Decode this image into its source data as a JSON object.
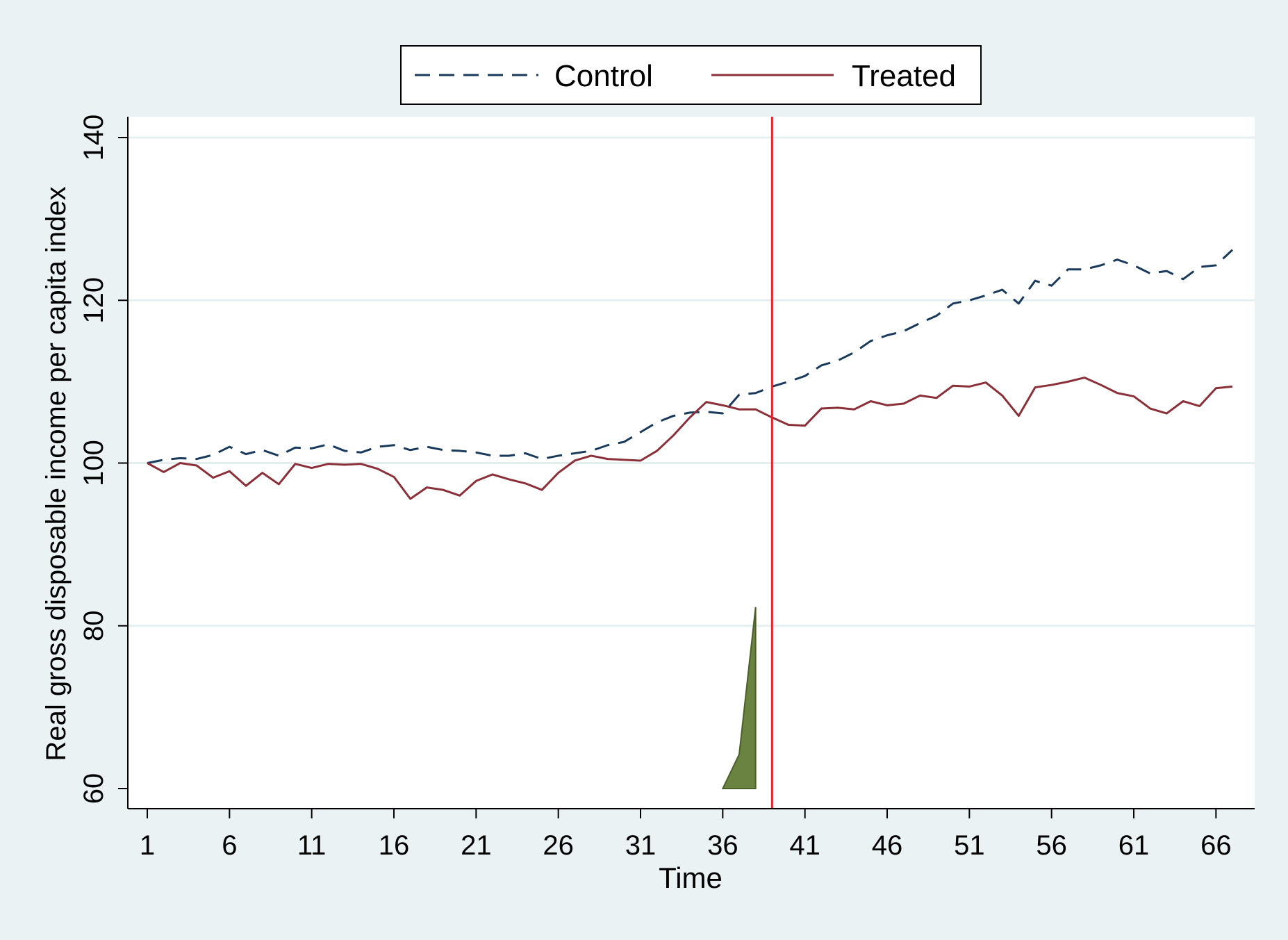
{
  "chart_data": {
    "type": "line",
    "title": "",
    "xlabel": "Time",
    "ylabel": "Real gross disposable income per capita index",
    "xlim": [
      1,
      67
    ],
    "ylim": [
      60,
      140
    ],
    "x_ticks": [
      "1",
      "6",
      "11",
      "16",
      "21",
      "26",
      "31",
      "36",
      "41",
      "46",
      "51",
      "56",
      "61",
      "66"
    ],
    "y_ticks": [
      "60",
      "80",
      "100",
      "120",
      "140"
    ],
    "grid": "horizontal",
    "legend_position": "top",
    "legend": [
      {
        "label": "Control",
        "style": "dashed",
        "color": "#1a3a5c"
      },
      {
        "label": "Treated",
        "style": "solid",
        "color": "#8b2f39"
      }
    ],
    "treatment_line": {
      "x": 39,
      "color": "#e3242b"
    },
    "x": [
      1,
      2,
      3,
      4,
      5,
      6,
      7,
      8,
      9,
      10,
      11,
      12,
      13,
      14,
      15,
      16,
      17,
      18,
      19,
      20,
      21,
      22,
      23,
      24,
      25,
      26,
      27,
      28,
      29,
      30,
      31,
      32,
      33,
      34,
      35,
      36,
      37,
      38,
      39,
      40,
      41,
      42,
      43,
      44,
      45,
      46,
      47,
      48,
      49,
      50,
      51,
      52,
      53,
      54,
      55,
      56,
      57,
      58,
      59,
      60,
      61,
      62,
      63,
      64,
      65,
      66,
      67
    ],
    "series": [
      {
        "name": "Control",
        "style": "dashed",
        "color": "#1a3a5c",
        "values": [
          100.0,
          100.4,
          100.6,
          100.5,
          101.0,
          102.0,
          101.1,
          101.6,
          100.9,
          101.9,
          101.8,
          102.3,
          101.5,
          101.3,
          102.0,
          102.2,
          101.6,
          102.0,
          101.6,
          101.5,
          101.3,
          100.9,
          100.9,
          101.2,
          100.5,
          100.9,
          101.2,
          101.5,
          102.2,
          102.6,
          103.8,
          105.0,
          105.8,
          106.2,
          106.3,
          106.1,
          108.4,
          108.6,
          109.4,
          110.0,
          110.7,
          112.0,
          112.6,
          113.6,
          115.0,
          115.7,
          116.2,
          117.2,
          118.1,
          119.6,
          120.0,
          120.6,
          121.3,
          119.6,
          122.4,
          121.8,
          123.8,
          123.8,
          124.3,
          125.0,
          124.3,
          123.3,
          123.6,
          122.6,
          124.1,
          124.3,
          126.2
        ]
      },
      {
        "name": "Treated",
        "style": "solid",
        "color": "#8b2f39",
        "values": [
          100.0,
          98.9,
          100.0,
          99.7,
          98.2,
          99.0,
          97.2,
          98.8,
          97.4,
          99.9,
          99.4,
          99.9,
          99.8,
          99.9,
          99.3,
          98.3,
          95.6,
          97.0,
          96.7,
          96.0,
          97.8,
          98.6,
          98.0,
          97.5,
          96.7,
          98.8,
          100.3,
          100.9,
          100.5,
          100.4,
          100.3,
          101.5,
          103.4,
          105.6,
          107.5,
          107.1,
          106.6,
          106.6,
          105.6,
          104.7,
          104.6,
          106.7,
          106.8,
          106.6,
          107.6,
          107.1,
          107.3,
          108.3,
          108.0,
          109.5,
          109.4,
          109.9,
          108.3,
          105.8,
          109.3,
          109.6,
          110.0,
          110.5,
          109.6,
          108.6,
          108.2,
          106.7,
          106.1,
          107.6,
          107.0,
          109.2,
          109.4
        ]
      }
    ],
    "density_marker": {
      "color": "#6b8340",
      "points": [
        [
          36,
          60
        ],
        [
          37,
          64.2
        ],
        [
          38,
          82.3
        ],
        [
          38,
          60
        ]
      ]
    }
  }
}
